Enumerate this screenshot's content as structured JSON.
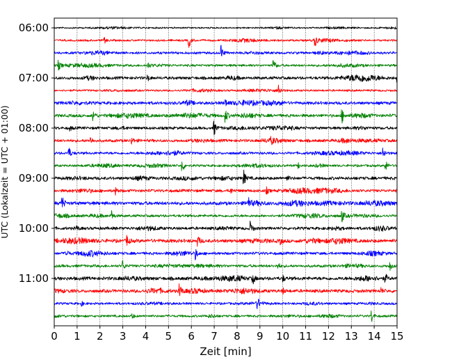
{
  "chart_data": {
    "type": "line",
    "title": "",
    "xlabel": "Zeit  [min]",
    "ylabel": "UTC (Lokalzeit = UTC + 01:00)",
    "xlim": [
      0,
      15
    ],
    "x_ticks": [
      "0",
      "1",
      "2",
      "3",
      "4",
      "5",
      "6",
      "7",
      "8",
      "9",
      "10",
      "11",
      "12",
      "13",
      "14",
      "15"
    ],
    "y_tick_labels": [
      {
        "row": 0,
        "label": "06:00"
      },
      {
        "row": 4,
        "label": "07:00"
      },
      {
        "row": 8,
        "label": "08:00"
      },
      {
        "row": 12,
        "label": "09:00"
      },
      {
        "row": 16,
        "label": "10:00"
      },
      {
        "row": 20,
        "label": "11:00"
      }
    ],
    "grid": "vertical dotted",
    "trace_colors": [
      "#000000",
      "#ff0000",
      "#0000ff",
      "#008000"
    ],
    "rows": [
      {
        "start": "06:00",
        "color": "#000000",
        "noise": 1.0,
        "events": []
      },
      {
        "start": "06:15",
        "color": "#ff0000",
        "noise": 1.3,
        "events": [
          [
            2.2,
            4
          ],
          [
            5.9,
            10
          ],
          [
            11.4,
            9
          ]
        ]
      },
      {
        "start": "06:30",
        "color": "#0000ff",
        "noise": 1.6,
        "events": [
          [
            7.3,
            11
          ]
        ]
      },
      {
        "start": "06:45",
        "color": "#008000",
        "noise": 1.5,
        "events": [
          [
            0.2,
            6
          ],
          [
            4.1,
            4
          ],
          [
            9.6,
            9
          ]
        ]
      },
      {
        "start": "07:00",
        "color": "#000000",
        "noise": 1.9,
        "events": [
          [
            4.1,
            4
          ],
          [
            15.0,
            5
          ]
        ]
      },
      {
        "start": "07:15",
        "color": "#ff0000",
        "noise": 1.3,
        "events": [
          [
            9.8,
            10
          ]
        ]
      },
      {
        "start": "07:30",
        "color": "#0000ff",
        "noise": 2.0,
        "events": [
          [
            7.5,
            5
          ],
          [
            9.9,
            4
          ]
        ]
      },
      {
        "start": "07:45",
        "color": "#008000",
        "noise": 2.0,
        "events": [
          [
            1.7,
            8
          ],
          [
            7.5,
            9
          ],
          [
            12.6,
            9
          ]
        ]
      },
      {
        "start": "08:00",
        "color": "#000000",
        "noise": 1.8,
        "events": [
          [
            7.0,
            10
          ],
          [
            0.7,
            3
          ]
        ]
      },
      {
        "start": "08:15",
        "color": "#ff0000",
        "noise": 1.9,
        "events": [
          [
            1.6,
            5
          ],
          [
            3.4,
            5
          ],
          [
            9.5,
            3
          ]
        ]
      },
      {
        "start": "08:30",
        "color": "#0000ff",
        "noise": 1.7,
        "events": [
          [
            0.65,
            8
          ],
          [
            14.4,
            8
          ]
        ]
      },
      {
        "start": "08:45",
        "color": "#008000",
        "noise": 1.5,
        "events": [
          [
            5.6,
            10
          ],
          [
            10.7,
            3
          ],
          [
            14.5,
            8
          ]
        ]
      },
      {
        "start": "09:00",
        "color": "#000000",
        "noise": 2.0,
        "events": [
          [
            8.3,
            10
          ],
          [
            10.2,
            3
          ]
        ]
      },
      {
        "start": "09:15",
        "color": "#ff0000",
        "noise": 1.9,
        "events": [
          [
            2.7,
            5
          ],
          [
            7.7,
            5
          ],
          [
            9.3,
            4
          ]
        ]
      },
      {
        "start": "09:30",
        "color": "#0000ff",
        "noise": 2.2,
        "events": [
          [
            0.35,
            10
          ],
          [
            8.5,
            7
          ]
        ]
      },
      {
        "start": "09:45",
        "color": "#008000",
        "noise": 1.7,
        "events": [
          [
            2.5,
            8
          ],
          [
            12.6,
            8
          ]
        ]
      },
      {
        "start": "10:00",
        "color": "#000000",
        "noise": 1.9,
        "events": [
          [
            8.6,
            9
          ],
          [
            1.0,
            3
          ]
        ]
      },
      {
        "start": "10:15",
        "color": "#ff0000",
        "noise": 2.3,
        "events": [
          [
            3.2,
            7
          ],
          [
            6.3,
            6
          ],
          [
            9.9,
            4
          ]
        ]
      },
      {
        "start": "10:30",
        "color": "#0000ff",
        "noise": 1.8,
        "events": [
          [
            0.5,
            9
          ],
          [
            6.2,
            7
          ]
        ]
      },
      {
        "start": "10:45",
        "color": "#008000",
        "noise": 1.8,
        "events": [
          [
            3.0,
            7
          ],
          [
            9.8,
            4
          ],
          [
            14.7,
            6
          ]
        ]
      },
      {
        "start": "11:00",
        "color": "#000000",
        "noise": 2.2,
        "events": [
          [
            8.7,
            7
          ],
          [
            10.0,
            4
          ],
          [
            14.5,
            5
          ]
        ]
      },
      {
        "start": "11:15",
        "color": "#ff0000",
        "noise": 2.1,
        "events": [
          [
            5.5,
            9
          ],
          [
            10.0,
            4
          ],
          [
            14.3,
            4
          ]
        ]
      },
      {
        "start": "11:30",
        "color": "#0000ff",
        "noise": 1.5,
        "events": [
          [
            8.9,
            8
          ],
          [
            1.2,
            3
          ]
        ]
      },
      {
        "start": "11:45",
        "color": "#008000",
        "noise": 1.5,
        "events": [
          [
            3.4,
            4
          ],
          [
            13.9,
            8
          ]
        ]
      }
    ]
  }
}
